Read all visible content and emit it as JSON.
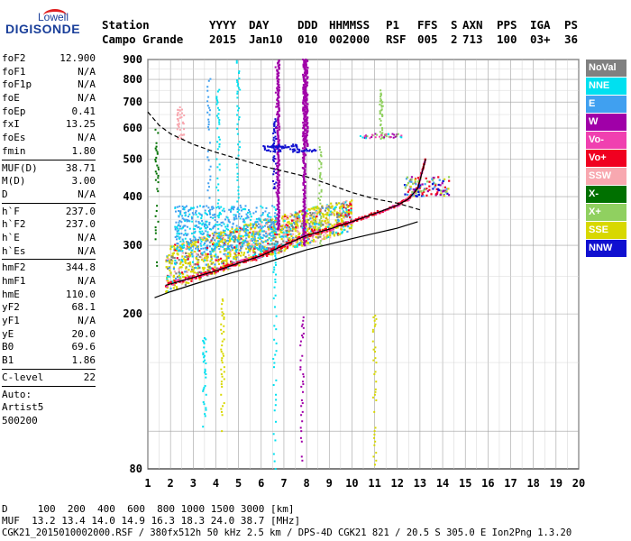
{
  "logo": {
    "line1": "Lowell",
    "line2": "DIGISONDE"
  },
  "header": {
    "row1": [
      "Station",
      "YYYY",
      "DAY",
      "DDD",
      "HHMMSS",
      "P1",
      "FFS",
      "S",
      "AXN",
      "PPS",
      "IGA",
      "PS"
    ],
    "row2": [
      "Campo Grande",
      "2015",
      "Jan10",
      "010",
      "002000",
      "RSF",
      "005",
      "2",
      "713",
      "100",
      "03+",
      "36"
    ]
  },
  "params": {
    "group1": [
      {
        "k": "foF2",
        "v": "12.900"
      },
      {
        "k": "foF1",
        "v": "N/A"
      },
      {
        "k": "foF1p",
        "v": "N/A"
      },
      {
        "k": "foE",
        "v": "N/A"
      },
      {
        "k": "foEp",
        "v": "0.41"
      },
      {
        "k": "fxI",
        "v": "13.25"
      },
      {
        "k": "foEs",
        "v": "N/A"
      },
      {
        "k": "fmin",
        "v": "1.80"
      }
    ],
    "group2": [
      {
        "k": "MUF(D)",
        "v": "38.71"
      },
      {
        "k": "M(D)",
        "v": "3.00"
      },
      {
        "k": "D",
        "v": "N/A"
      }
    ],
    "group3": [
      {
        "k": "h`F",
        "v": "237.0"
      },
      {
        "k": "h`F2",
        "v": "237.0"
      },
      {
        "k": "h`E",
        "v": "N/A"
      },
      {
        "k": "h`Es",
        "v": "N/A"
      }
    ],
    "group4": [
      {
        "k": "hmF2",
        "v": "344.8"
      },
      {
        "k": "hmF1",
        "v": "N/A"
      },
      {
        "k": "hmE",
        "v": "110.0"
      },
      {
        "k": "yF2",
        "v": "68.1"
      },
      {
        "k": "yF1",
        "v": "N/A"
      },
      {
        "k": "yE",
        "v": "20.0"
      },
      {
        "k": "B0",
        "v": "69.6"
      },
      {
        "k": "B1",
        "v": "1.86"
      }
    ],
    "group5": [
      {
        "k": "C-level",
        "v": "22"
      }
    ],
    "auto": [
      "Auto:",
      "Artist5",
      "500200"
    ]
  },
  "legend": [
    {
      "label": "NoVal",
      "bg": "#808080",
      "fg": "#ffffff"
    },
    {
      "label": "NNE",
      "bg": "#00e0f0",
      "fg": "#ffffff"
    },
    {
      "label": "E",
      "bg": "#40a0f0",
      "fg": "#ffffff"
    },
    {
      "label": "W",
      "bg": "#a000a8",
      "fg": "#ffffff"
    },
    {
      "label": "Vo-",
      "bg": "#f040b0",
      "fg": "#ffffff"
    },
    {
      "label": "Vo+",
      "bg": "#f00020",
      "fg": "#ffffff"
    },
    {
      "label": "SSW",
      "bg": "#f8a8b0",
      "fg": "#ffffff"
    },
    {
      "label": "X-",
      "bg": "#007000",
      "fg": "#ffffff"
    },
    {
      "label": "X+",
      "bg": "#90d060",
      "fg": "#ffffff"
    },
    {
      "label": "SSE",
      "bg": "#d8d800",
      "fg": "#ffffff"
    },
    {
      "label": "NNW",
      "bg": "#1010d0",
      "fg": "#ffffff"
    }
  ],
  "footer": {
    "line1": "D     100  200  400  600  800 1000 1500 3000 [km]",
    "line2": "MUF  13.2 13.4 14.0 14.9 16.3 18.3 24.0 38.7 [MHz]",
    "line3": "CGK21_2015010002000.RSF / 380fx512h 50 kHz 2.5 km / DPS-4D CGK21 821 / 20.5 S 305.0 E Ion2Png 1.3.20"
  },
  "chart_data": {
    "type": "scatter",
    "xlim": [
      1,
      20
    ],
    "ylim": [
      80,
      900
    ],
    "x_ticks": [
      1,
      2,
      3,
      4,
      5,
      6,
      7,
      8,
      9,
      10,
      11,
      12,
      13,
      14,
      15,
      16,
      17,
      18,
      19,
      20
    ],
    "y_ticks": [
      100,
      200,
      300,
      400,
      500,
      600,
      700,
      800,
      900
    ],
    "y_tick_labels": [
      "",
      "200",
      "300",
      "400",
      "500",
      "600",
      "700",
      "800",
      "900"
    ],
    "bottom_left_tick": "80",
    "y_scale": "logarithmic",
    "grid": true,
    "trace_profile": {
      "x": [
        1.8,
        3.0,
        4.0,
        5.0,
        6.0,
        7.0,
        8.0,
        9.0,
        10.0,
        11.0,
        12.0,
        12.5,
        12.9,
        13.25
      ],
      "y": [
        237,
        248,
        258,
        270,
        282,
        300,
        318,
        330,
        345,
        362,
        380,
        395,
        420,
        500
      ]
    },
    "profile_solid_lower": {
      "x": [
        1.3,
        2.0,
        3.0,
        4.0,
        5.0,
        6.0,
        7.0,
        8.0,
        9.0,
        10.0,
        11.0,
        12.0,
        12.9
      ],
      "y": [
        220,
        228,
        238,
        248,
        258,
        268,
        280,
        292,
        302,
        312,
        322,
        332,
        345
      ]
    },
    "profile_dashed": {
      "x": [
        1.0,
        1.5,
        2.0,
        3.0,
        4.0,
        5.0,
        6.0,
        7.0,
        8.0,
        9.0,
        10.0,
        11.0,
        12.0,
        13.0
      ],
      "y": [
        660,
        610,
        580,
        545,
        520,
        500,
        480,
        465,
        450,
        430,
        410,
        395,
        385,
        370
      ]
    }
  }
}
